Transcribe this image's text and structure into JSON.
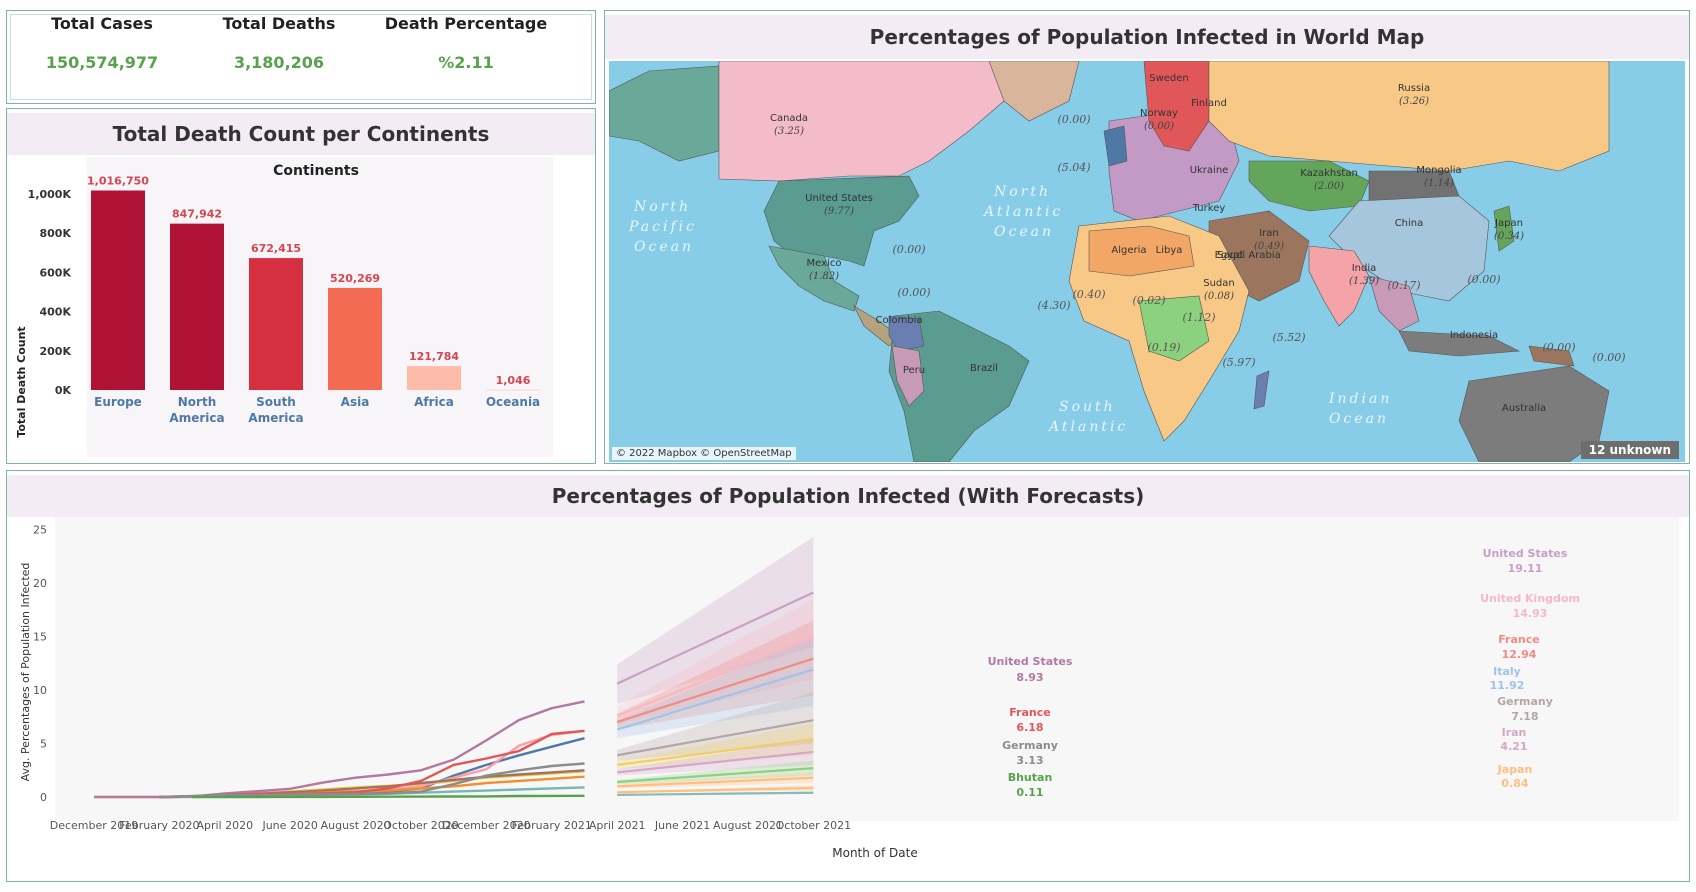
{
  "kpis": {
    "total_cases_label": "Total Cases",
    "total_cases_value": "150,574,977",
    "total_deaths_label": "Total Deaths",
    "total_deaths_value": "3,180,206",
    "death_pct_label": "Death Percentage",
    "death_pct_value": "%2.11"
  },
  "bar_panel": {
    "title": "Total Death Count per Continents",
    "header": "Continents",
    "ylabel": "Total Death Count"
  },
  "map_panel": {
    "title": "Percentages of Population Infected in World Map",
    "attribution": "© 2022 Mapbox © OpenStreetMap",
    "unknown_badge": "12 unknown",
    "ocean_labels": [
      "North Pacific Ocean",
      "North Atlantic Ocean",
      "South Atlantic",
      "Indian Ocean"
    ],
    "country_labels": [
      {
        "name": "Canada",
        "value": "(3.25)"
      },
      {
        "name": "United States",
        "value": "(9.77)"
      },
      {
        "name": "Mexico",
        "value": "(1.82)"
      },
      {
        "name": "Colombia",
        "value": ""
      },
      {
        "name": "Brazil",
        "value": ""
      },
      {
        "name": "Peru",
        "value": ""
      },
      {
        "name": "Russia",
        "value": "(3.26)"
      },
      {
        "name": "Kazakhstan",
        "value": "(2.00)"
      },
      {
        "name": "Mongolia",
        "value": "(1.14)"
      },
      {
        "name": "China",
        "value": ""
      },
      {
        "name": "Japan",
        "value": "(0.34)"
      },
      {
        "name": "India",
        "value": "(1.39)"
      },
      {
        "name": "Iran",
        "value": "(0.49)"
      },
      {
        "name": "Turkey",
        "value": ""
      },
      {
        "name": "Ukraine",
        "value": ""
      },
      {
        "name": "Algeria",
        "value": ""
      },
      {
        "name": "Libya",
        "value": ""
      },
      {
        "name": "Egypt",
        "value": ""
      },
      {
        "name": "Sudan",
        "value": "(0.08)"
      },
      {
        "name": "Saudi Arabia",
        "value": ""
      },
      {
        "name": "Finland",
        "value": ""
      },
      {
        "name": "Sweden",
        "value": ""
      },
      {
        "name": "Norway",
        "value": "(0.00)"
      },
      {
        "name": "Indonesia",
        "value": ""
      },
      {
        "name": "Australia",
        "value": ""
      }
    ],
    "value_labels": [
      "(0.00)",
      "(0.00)",
      "(0.00)",
      "(5.04)",
      "(4.30)",
      "(0.40)",
      "(0.02)",
      "(0.19)",
      "(1.12)",
      "(5.97)",
      "(5.52)",
      "(0.17)",
      "(0.00)",
      "(0.00)",
      "(0.00)"
    ]
  },
  "line_panel": {
    "title": "Percentages of Population Infected (With Forecasts)",
    "xlabel": "Month of Date",
    "ylabel": "Avg. Percentages of Population Infected"
  },
  "colors": {
    "bar_dark": "#b01236",
    "bar_mid": "#d62f3f",
    "bar_orange": "#f26b52",
    "bar_pale": "#fdbcaa",
    "value_label": "#d64550",
    "category_label": "#4e79a7",
    "kpi_green": "#59a14f"
  },
  "chart_data": [
    {
      "type": "bar",
      "title": "Total Death Count per Continents",
      "xlabel": "Continents",
      "ylabel": "Total Death Count",
      "categories": [
        "Europe",
        "North America",
        "South America",
        "Asia",
        "Africa",
        "Oceania"
      ],
      "values": [
        1016750,
        847942,
        672415,
        520269,
        121784,
        1046
      ],
      "value_labels": [
        "1,016,750",
        "847,942",
        "672,415",
        "520,269",
        "121,784",
        "1,046"
      ],
      "yticks": [
        "0K",
        "200K",
        "400K",
        "600K",
        "800K",
        "1,000K"
      ],
      "ylim": [
        0,
        1050000
      ]
    },
    {
      "type": "line",
      "title": "Percentages of Population Infected (With Forecasts)",
      "xlabel": "Month of Date",
      "ylabel": "Avg. Percentages of Population Infected",
      "ylim": [
        0,
        25
      ],
      "yticks": [
        0,
        5,
        10,
        15,
        20,
        25
      ],
      "xticks": [
        "December 2019",
        "February 2020",
        "April 2020",
        "June 2020",
        "August 2020",
        "October 2020",
        "December 2020",
        "February 2021",
        "April 2021",
        "June 2021",
        "August 2021",
        "October 2021"
      ],
      "x": [
        "2019-12",
        "2020-01",
        "2020-02",
        "2020-03",
        "2020-04",
        "2020-05",
        "2020-06",
        "2020-07",
        "2020-08",
        "2020-09",
        "2020-10",
        "2020-11",
        "2020-12",
        "2021-01",
        "2021-02",
        "2021-03",
        "2021-04"
      ],
      "series": [
        {
          "name": "United States",
          "color": "#b07aa1",
          "values": [
            0,
            0,
            0,
            0.06,
            0.33,
            0.54,
            0.77,
            1.35,
            1.8,
            2.1,
            2.5,
            3.5,
            5.3,
            7.2,
            8.3,
            8.93,
            null
          ],
          "end_label": "8.93"
        },
        {
          "name": "France",
          "color": "#e15759",
          "values": [
            null,
            null,
            0,
            0.08,
            0.2,
            0.3,
            0.3,
            0.35,
            0.45,
            0.8,
            1.5,
            3.0,
            3.6,
            4.3,
            5.9,
            6.18,
            null
          ],
          "end_label": "6.18"
        },
        {
          "name": "Germany",
          "color": "#8c8c8c",
          "values": [
            null,
            null,
            0,
            0.08,
            0.18,
            0.2,
            0.23,
            0.25,
            0.28,
            0.35,
            0.5,
            1.2,
            2.0,
            2.5,
            2.9,
            3.13,
            null
          ],
          "end_label": "3.13"
        },
        {
          "name": "Bhutan",
          "color": "#59a14f",
          "values": [
            null,
            null,
            null,
            0,
            0,
            0,
            0.01,
            0.01,
            0.02,
            0.03,
            0.04,
            0.05,
            0.06,
            0.09,
            0.1,
            0.11,
            null
          ],
          "end_label": "0.11"
        },
        {
          "name": "",
          "color": "#4e79a7",
          "values": [
            null,
            null,
            0,
            0.05,
            0.2,
            0.3,
            0.3,
            0.35,
            0.4,
            0.5,
            0.8,
            2.0,
            3.0,
            3.9,
            4.7,
            5.5,
            null
          ]
        },
        {
          "name": "",
          "color": "#edc948",
          "values": [
            0,
            0,
            0,
            0.04,
            0.2,
            0.35,
            0.5,
            0.7,
            0.9,
            1.05,
            1.2,
            1.5,
            1.8,
            2.0,
            2.2,
            2.4,
            null
          ]
        },
        {
          "name": "",
          "color": "#ff9da7",
          "values": [
            null,
            null,
            0,
            0.05,
            0.25,
            0.4,
            0.45,
            0.5,
            0.55,
            0.7,
            1.0,
            1.8,
            2.6,
            4.8,
            5.8,
            6.2,
            null
          ]
        },
        {
          "name": "",
          "color": "#9c755f",
          "values": [
            null,
            null,
            0,
            0.03,
            0.15,
            0.3,
            0.45,
            0.6,
            0.8,
            1.0,
            1.3,
            1.6,
            1.9,
            2.1,
            2.3,
            2.5,
            null
          ]
        },
        {
          "name": "",
          "color": "#f28e2b",
          "values": [
            null,
            null,
            0,
            0.02,
            0.1,
            0.2,
            0.3,
            0.4,
            0.5,
            0.6,
            0.8,
            1.0,
            1.3,
            1.5,
            1.7,
            1.9,
            null
          ]
        },
        {
          "name": "",
          "color": "#76b7b2",
          "values": [
            null,
            null,
            0,
            0.01,
            0.05,
            0.1,
            0.15,
            0.2,
            0.25,
            0.3,
            0.4,
            0.5,
            0.6,
            0.7,
            0.8,
            0.9,
            null
          ]
        }
      ],
      "forecast": {
        "x": [
          "2021-04",
          "2021-10"
        ],
        "series": [
          {
            "name": "United States",
            "color": "#c9a0c4",
            "start": 10.6,
            "end": 19.11,
            "band_start": [
              8.7,
              12.4
            ],
            "band_end": [
              14.0,
              24.3
            ],
            "end_label": "19.11"
          },
          {
            "name": "United Kingdom",
            "color": "#f6b8c6",
            "start": 7.6,
            "end": 14.93,
            "band_start": [
              6.8,
              8.5
            ],
            "band_end": [
              11.0,
              18.5
            ],
            "end_label": "14.93"
          },
          {
            "name": "France",
            "color": "#f28b82",
            "start": 7.0,
            "end": 12.94,
            "band_start": [
              6.3,
              7.8
            ],
            "band_end": [
              9.5,
              16.5
            ],
            "end_label": "12.94"
          },
          {
            "name": "Italy",
            "color": "#a0c3e6",
            "start": 6.3,
            "end": 11.92,
            "band_start": [
              5.5,
              7.1
            ],
            "band_end": [
              8.5,
              15.0
            ],
            "end_label": "11.92"
          },
          {
            "name": "Germany",
            "color": "#b3a6a6",
            "start": 3.9,
            "end": 7.18,
            "band_start": [
              3.4,
              4.4
            ],
            "band_end": [
              5.0,
              9.8
            ],
            "end_label": "7.18"
          },
          {
            "name": "",
            "color": "#f1ce63",
            "start": 3.0,
            "end": 5.4,
            "band_start": [
              2.6,
              3.4
            ],
            "band_end": [
              3.9,
              6.9
            ]
          },
          {
            "name": "Iran",
            "color": "#d4a6c8",
            "start": 2.3,
            "end": 4.21,
            "band_start": [
              2.0,
              2.6
            ],
            "band_end": [
              3.0,
              5.4
            ],
            "end_label": "4.21"
          },
          {
            "name": "",
            "color": "#8cd17d",
            "start": 1.4,
            "end": 2.7,
            "band_start": [
              1.2,
              1.6
            ],
            "band_end": [
              2.0,
              3.4
            ]
          },
          {
            "name": "",
            "color": "#ffbe7d",
            "start": 1.0,
            "end": 1.8,
            "band_start": [
              0.8,
              1.2
            ],
            "band_end": [
              1.3,
              2.3
            ]
          },
          {
            "name": "Japan",
            "color": "#ffbe7d",
            "start": 0.45,
            "end": 0.84,
            "band_start": [
              0.4,
              0.5
            ],
            "band_end": [
              0.6,
              1.1
            ],
            "end_label": "0.84"
          },
          {
            "name": "",
            "color": "#86bcb6",
            "start": 0.2,
            "end": 0.4,
            "band_start": [
              0.15,
              0.25
            ],
            "band_end": [
              0.3,
              0.5
            ]
          }
        ]
      }
    }
  ]
}
